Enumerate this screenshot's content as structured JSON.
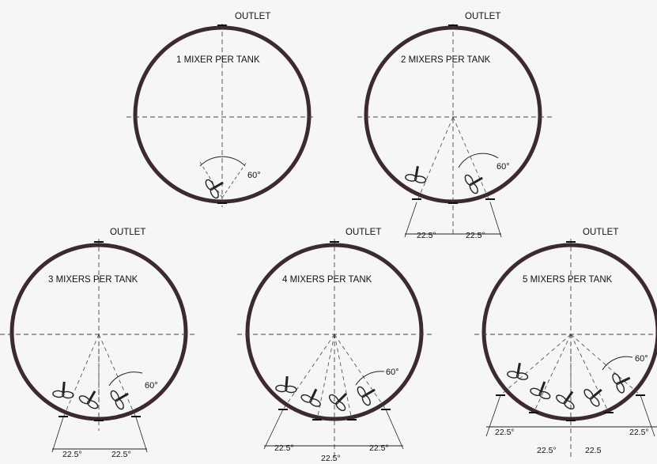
{
  "tanks": [
    {
      "title": "1 MIXER PER TANK",
      "outlet": "OUTLET",
      "mixers": 1,
      "angle_label": "60°",
      "dimensions": []
    },
    {
      "title": "2 MIXERS PER TANK",
      "outlet": "OUTLET",
      "mixers": 2,
      "angle_label": "60°",
      "dimensions": [
        "22.5°",
        "22.5°"
      ]
    },
    {
      "title": "3 MIXERS PER TANK",
      "outlet": "OUTLET",
      "mixers": 3,
      "angle_label": "60°",
      "dimensions": [
        "22.5°",
        "22.5°"
      ]
    },
    {
      "title": "4 MIXERS PER TANK",
      "outlet": "OUTLET",
      "mixers": 4,
      "angle_label": "60°",
      "dimensions": [
        "22.5°",
        "22.5°",
        "22.5°"
      ]
    },
    {
      "title": "5 MIXERS PER TANK",
      "outlet": "OUTLET",
      "mixers": 5,
      "angle_label": "60°",
      "dimensions": [
        "22.5°",
        "22.5°",
        "22.5°",
        "22.5"
      ]
    }
  ],
  "colors": {
    "tank_wall": "#3d2a2e",
    "line": "#222222"
  }
}
